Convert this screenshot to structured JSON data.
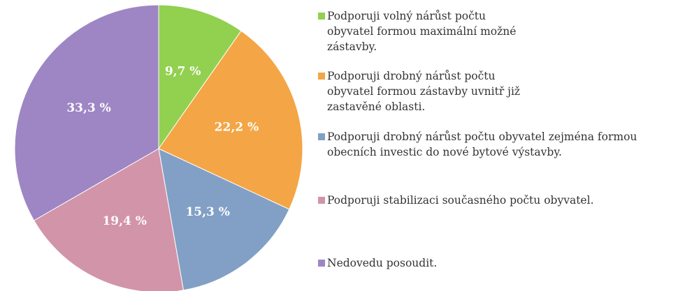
{
  "chart_data": {
    "type": "pie",
    "categories": [
      "Podporuji volný nárůst počtu obyvatel formou maximální možné zástavby.",
      "Podporuji drobný nárůst počtu obyvatel formou zástavby uvnitř již zastavěné oblasti.",
      "Podporuji drobný nárůst počtu obyvatel zejména formou obecních investic do nové bytové výstavby.",
      "Podporuji stabilizaci současného počtu obyvatel.",
      "Nedovedu posoudit."
    ],
    "values": [
      9.7,
      22.2,
      15.3,
      19.4,
      33.3
    ],
    "value_labels": [
      "9,7 %",
      "22,2 %",
      "15,3 %",
      "19,4 %",
      "33,3 %"
    ],
    "colors": [
      "#92d050",
      "#f4a545",
      "#82a0c5",
      "#d294a8",
      "#9e86c4"
    ],
    "legend": "right"
  }
}
